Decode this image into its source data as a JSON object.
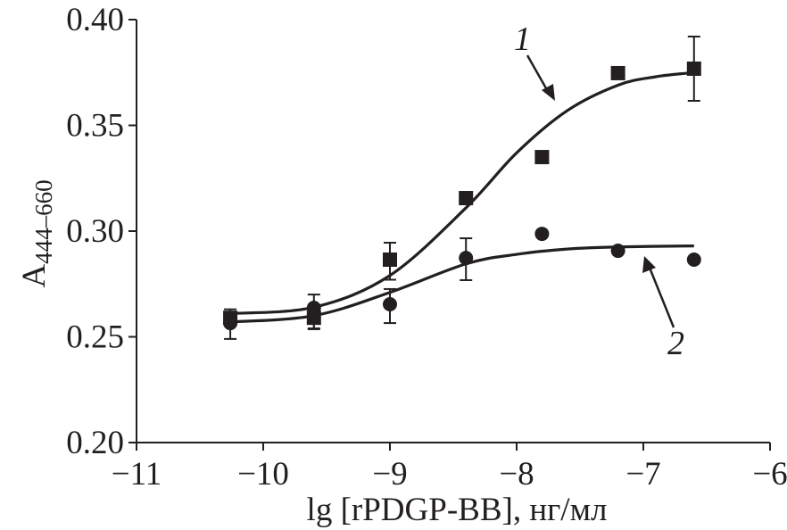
{
  "chart_data": {
    "type": "scatter",
    "title": "",
    "xlabel": "lg [rPDGP-BB], нг/мл",
    "ylabel_main": "A",
    "ylabel_sub": "444–660",
    "xlim": [
      -11,
      -6
    ],
    "ylim": [
      0.2,
      0.4
    ],
    "xticks": [
      -11,
      -10,
      -9,
      -8,
      -7,
      -6
    ],
    "xtick_labels": [
      "−11",
      "−10",
      "−9",
      "−8",
      "−7",
      "−6"
    ],
    "yticks": [
      0.2,
      0.25,
      0.3,
      0.35,
      0.4
    ],
    "ytick_labels": [
      "0.20",
      "0.25",
      "0.30",
      "0.35",
      "0.40"
    ],
    "grid": false,
    "color": "#231f20",
    "series": [
      {
        "name": "1",
        "marker": "square",
        "x": [
          -10.26,
          -9.6,
          -9.0,
          -8.4,
          -7.8,
          -7.2,
          -6.6
        ],
        "y": [
          0.259,
          0.259,
          0.2865,
          0.3156,
          0.335,
          0.3747,
          0.3768
        ],
        "err_low": [
          0.256,
          0.254,
          0.277,
          null,
          null,
          null,
          0.3616
        ],
        "err_high": [
          0.263,
          null,
          0.2945,
          null,
          null,
          null,
          0.392
        ],
        "fit_x": [
          -10.26,
          -9.6,
          -9.0,
          -8.4,
          -8.0,
          -7.6,
          -7.2,
          -6.9,
          -6.6
        ],
        "fit_y": [
          0.261,
          0.264,
          0.279,
          0.311,
          0.337,
          0.357,
          0.369,
          0.373,
          0.375
        ]
      },
      {
        "name": "2",
        "marker": "circle",
        "x": [
          -10.26,
          -9.6,
          -9.0,
          -8.4,
          -7.8,
          -7.2,
          -6.6
        ],
        "y": [
          0.2565,
          0.2637,
          0.2654,
          0.2873,
          0.2987,
          0.2907,
          0.2865
        ],
        "err_low": [
          0.249,
          0.2536,
          0.2565,
          0.2768,
          null,
          null,
          null
        ],
        "err_high": [
          null,
          0.27,
          0.2726,
          0.2966,
          null,
          null,
          null
        ],
        "fit_x": [
          -10.26,
          -9.6,
          -9.0,
          -8.4,
          -8.0,
          -7.6,
          -7.2,
          -6.6
        ],
        "fit_y": [
          0.257,
          0.26,
          0.271,
          0.2845,
          0.289,
          0.2915,
          0.2925,
          0.293
        ]
      }
    ],
    "annotations": [
      "1",
      "2"
    ]
  }
}
